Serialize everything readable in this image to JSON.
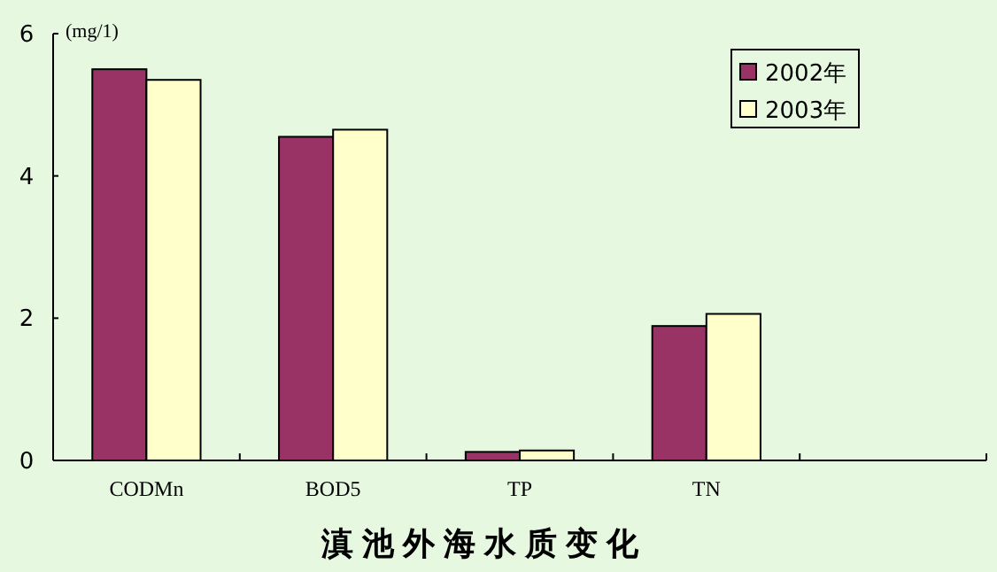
{
  "chart_data": {
    "type": "bar",
    "title": "滇池外海水质变化",
    "ylabel": "(mg/1)",
    "categories": [
      "CODMn",
      "BOD5",
      "TP",
      "TN",
      null
    ],
    "series": [
      {
        "name": "2002年",
        "color": "#993366",
        "values": [
          5.5,
          4.55,
          0.12,
          1.89,
          null
        ]
      },
      {
        "name": "2003年",
        "color": "#ffffcc",
        "values": [
          5.35,
          4.65,
          0.14,
          2.06,
          null
        ]
      }
    ],
    "ylim": [
      0,
      6
    ],
    "yticks": [
      0,
      2,
      4,
      6
    ],
    "grid": false,
    "legend": "top right"
  }
}
